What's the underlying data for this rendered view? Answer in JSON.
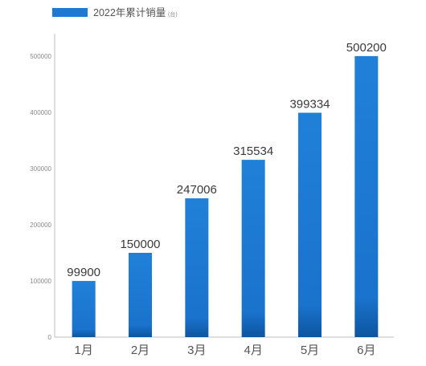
{
  "chart_data": {
    "type": "bar",
    "title": "",
    "legend": {
      "position": "top-left",
      "entries": [
        {
          "name": "2022年累计销量",
          "unit": "(台)",
          "color": "#1f78d1"
        }
      ]
    },
    "categories": [
      "1月",
      "2月",
      "3月",
      "4月",
      "5月",
      "6月"
    ],
    "series": [
      {
        "name": "2022年累计销量",
        "values": [
          99900,
          150000,
          247006,
          315534,
          399334,
          500200
        ]
      }
    ],
    "data_labels": [
      "99900",
      "150000",
      "247006",
      "315534",
      "399334",
      "500200"
    ],
    "yticks": [
      0,
      100000,
      200000,
      300000,
      400000,
      500000
    ],
    "ytick_labels": [
      "0",
      "100000",
      "200000",
      "300000",
      "400000",
      "500000"
    ],
    "ylim": [
      0,
      540000
    ],
    "xlabel": "",
    "ylabel": "",
    "grid": false,
    "colors": {
      "bar": "#1f78d1",
      "bar_dark": "#0f5aa8",
      "axis": "#bfbfbf"
    }
  }
}
